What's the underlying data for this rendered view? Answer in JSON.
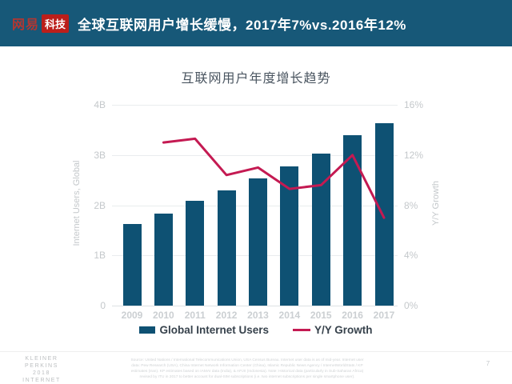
{
  "header": {
    "logo_brand": "网易",
    "logo_badge": "科技",
    "title": "全球互联网用户增长缓慢，2017年7%vs.2016年12%"
  },
  "chart_data": {
    "type": "combo_bar_line",
    "title": "互联网用户年度增长趋势",
    "categories": [
      "2009",
      "2010",
      "2011",
      "2012",
      "2013",
      "2014",
      "2015",
      "2016",
      "2017"
    ],
    "series": [
      {
        "name": "Global Internet Users",
        "type": "bar",
        "axis": "left",
        "unit": "billions",
        "color": "#0e5173",
        "values": [
          1.63,
          1.84,
          2.08,
          2.3,
          2.53,
          2.77,
          3.03,
          3.4,
          3.63
        ]
      },
      {
        "name": "Y/Y Growth",
        "type": "line",
        "axis": "right",
        "unit": "percent",
        "color": "#c41a52",
        "values": [
          null,
          13,
          13.3,
          10.4,
          11,
          9.3,
          9.6,
          12,
          7
        ]
      }
    ],
    "left_axis": {
      "label": "Internet Users, Global",
      "ticks": [
        "4B",
        "3B",
        "2B",
        "1B",
        "0"
      ],
      "range": [
        0,
        4
      ]
    },
    "right_axis": {
      "label": "Y/Y Growth",
      "ticks": [
        "16%",
        "12%",
        "8%",
        "4%",
        "0%"
      ],
      "range": [
        0,
        16
      ]
    },
    "gridlines": true,
    "legend_position": "bottom-center"
  },
  "colors": {
    "header_bg": "#175878",
    "logo_brand": "#b23732",
    "logo_badge": "#bc1e1a",
    "bar": "#0e5173",
    "line": "#c41a52"
  },
  "footer": {
    "brand_lines": [
      "KLEINER PERKINS",
      "2018",
      "INTERNET TRENDS"
    ],
    "source": "Source: United Nations / International Telecommunications Union, USA Census Bureau. Internet user data is as of mid-year. Internet user data: Pew Research (USA), China Internet Network Information Center (China), Islamic Republic News Agency / InternetWorldStats / KP estimates (Iran). KP estimates based on IAMAI data (India), & APJII (Indonesia). Note: Historical data (particularly in Sub-Saharan Africa) revised by ITU in 2017 to better account for dual-SIM subscriptions (i.e. two internet subscriptions per single smartphone user).",
    "page_number": "7"
  }
}
